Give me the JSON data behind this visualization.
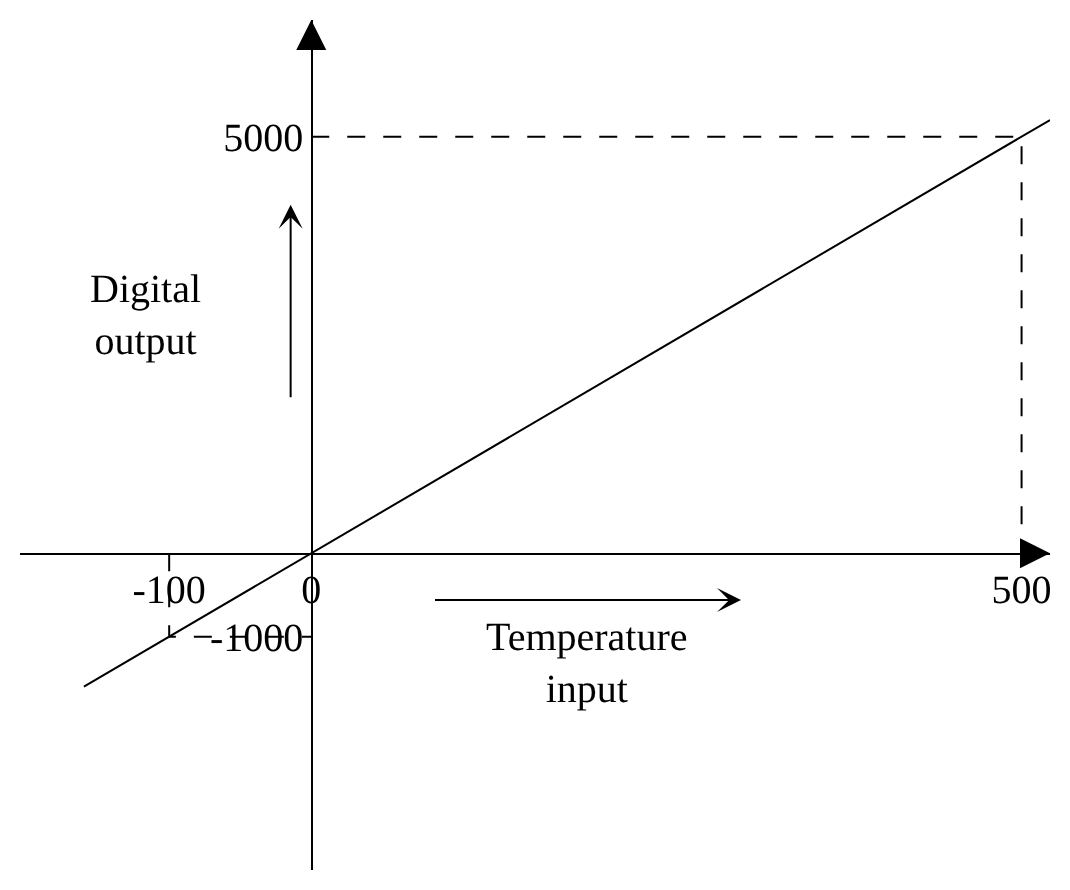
{
  "chart_data": {
    "type": "line",
    "xlabel": "Temperature input",
    "ylabel": "Digital output",
    "xlim": [
      -205,
      520
    ],
    "ylim": [
      -3800,
      6400
    ],
    "xticks": [
      -100,
      0,
      500
    ],
    "yticks": [
      -1000,
      5000
    ],
    "grid": false,
    "legend": false,
    "series": [
      {
        "color": "#000000",
        "x": [
          -160,
          520
        ],
        "values": [
          -1600,
          5200
        ],
        "line_style": "solid"
      },
      {
        "color": "#000000",
        "x": [
          -100,
          -100,
          0
        ],
        "values": [
          0,
          -1000,
          -1000
        ],
        "line_style": "dashed"
      },
      {
        "color": "#000000",
        "x": [
          0,
          500,
          500
        ],
        "values": [
          5000,
          5000,
          0
        ],
        "line_style": "dashed"
      }
    ]
  }
}
